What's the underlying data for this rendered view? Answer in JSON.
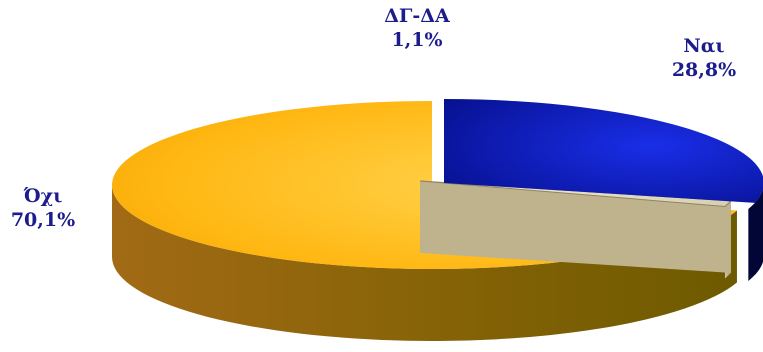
{
  "chart_data": {
    "type": "pie",
    "variant": "3d",
    "title": "",
    "categories": [
      "Ναι",
      "ΔΓ-ΔΑ",
      "Όχι"
    ],
    "values": [
      28.8,
      1.1,
      70.1
    ],
    "value_labels": [
      "28,8%",
      "1,1%",
      "70,1%"
    ],
    "colors": {
      "Ναι": "#0a14b4",
      "ΔΓ-ΔΑ": "#f2ead0",
      "Όχι": "#ffc21a"
    },
    "exploded": [
      "Ναι",
      "ΔΓ-ΔΑ"
    ],
    "legend": "none",
    "label_color": "#1c1c8c"
  }
}
